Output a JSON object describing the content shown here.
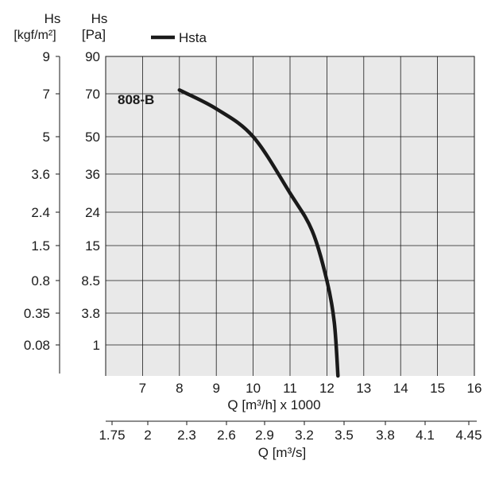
{
  "chart_data": {
    "type": "line",
    "title": "",
    "model_label": "808-B",
    "legend": {
      "entries": [
        "Hsta"
      ],
      "placement": "top-center"
    },
    "grid": true,
    "colors": {
      "plot_background": "#e9e9e9",
      "grid": "#1a1a1a",
      "curve": "#1a1a1a"
    },
    "y_axis_pa": {
      "unit_line1": "Hs",
      "unit_line2": "[Pa]",
      "tick_labels": [
        "90",
        "70",
        "50",
        "36",
        "24",
        "15",
        "8.5",
        "3.8",
        "1"
      ],
      "tick_positions": [
        90,
        70,
        50,
        36,
        24,
        15,
        8.5,
        3.8,
        1
      ],
      "scale": "nonlinear (labels at evenly spaced gridlines)"
    },
    "y_axis_kgf": {
      "unit_line1": "Hs",
      "unit_line2": "[kgf/m²]",
      "tick_labels": [
        "9",
        "7",
        "5",
        "3.6",
        "2.4",
        "1.5",
        "0.8",
        "0.35",
        "0.08"
      ]
    },
    "x_axis_primary": {
      "label": "Q [m³/h] x 1000",
      "tick_labels": [
        "7",
        "8",
        "9",
        "10",
        "11",
        "12",
        "13",
        "14",
        "15",
        "16"
      ],
      "range": [
        6,
        16
      ]
    },
    "x_axis_secondary": {
      "label": "Q [m³/s]",
      "tick_labels": [
        "1.75",
        "2",
        "2.3",
        "2.6",
        "2.9",
        "3.2",
        "3.5",
        "3.8",
        "4.1",
        "4.45"
      ]
    },
    "series": [
      {
        "name": "Hsta",
        "points": [
          {
            "x": 8.0,
            "y": 72
          },
          {
            "x": 9.0,
            "y": 63
          },
          {
            "x": 10.0,
            "y": 50
          },
          {
            "x": 11.0,
            "y": 30
          },
          {
            "x": 11.6,
            "y": 19
          },
          {
            "x": 12.0,
            "y": 8.5
          },
          {
            "x": 12.2,
            "y": 3
          },
          {
            "x": 12.3,
            "y": 0
          }
        ]
      }
    ]
  }
}
